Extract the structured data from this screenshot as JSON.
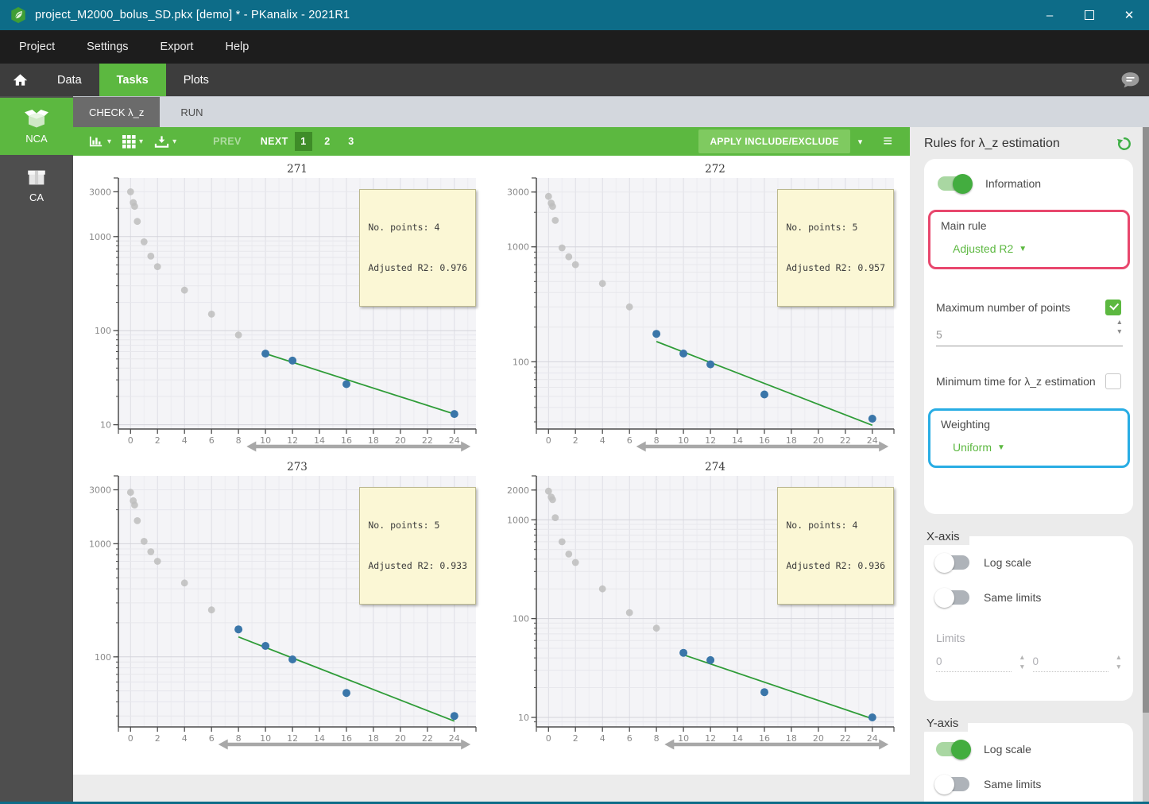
{
  "window": {
    "title": "project_M2000_bolus_SD.pkx [demo] * - PKanalix - 2021R1",
    "controls": {
      "minimize": "–",
      "close": "✕"
    }
  },
  "menu": {
    "items": [
      {
        "label": "Project"
      },
      {
        "label": "Settings"
      },
      {
        "label": "Export"
      },
      {
        "label": "Help"
      }
    ]
  },
  "nav": {
    "tabs": [
      {
        "label": "Data",
        "active": false
      },
      {
        "label": "Tasks",
        "active": true
      },
      {
        "label": "Plots",
        "active": false
      }
    ]
  },
  "sidebar": {
    "items": [
      {
        "label": "NCA",
        "active": true
      },
      {
        "label": "CA",
        "active": false
      }
    ]
  },
  "task_tabs": [
    {
      "label": "CHECK λ_z",
      "active": true
    },
    {
      "label": "RUN",
      "active": false
    }
  ],
  "toolbar": {
    "prev_label": "PREV",
    "next_label": "NEXT",
    "pages": [
      {
        "label": "1",
        "active": true
      },
      {
        "label": "2",
        "active": false
      },
      {
        "label": "3",
        "active": false
      }
    ],
    "apply_label": "APPLY INCLUDE/EXCLUDE"
  },
  "panel": {
    "title": "Rules for λ_z estimation",
    "information": {
      "label": "Information",
      "on": true
    },
    "main_rule": {
      "label": "Main rule",
      "value": "Adjusted R2"
    },
    "max_points": {
      "label": "Maximum number of points",
      "checked": true,
      "value": "5"
    },
    "min_time": {
      "label": "Minimum time for λ_z estimation",
      "checked": false
    },
    "weighting": {
      "label": "Weighting",
      "value": "Uniform"
    },
    "x_axis": {
      "title": "X-axis",
      "log_scale": {
        "label": "Log scale",
        "on": false
      },
      "same_limits": {
        "label": "Same limits",
        "on": false
      },
      "limits_label": "Limits",
      "limit_min": "0",
      "limit_max": "0"
    },
    "y_axis": {
      "title": "Y-axis",
      "log_scale": {
        "label": "Log scale",
        "on": true
      },
      "same_limits": {
        "label": "Same limits",
        "on": false
      }
    }
  },
  "chart_data": [
    {
      "type": "scatter",
      "title": "271",
      "log_y": true,
      "xlim": [
        -0.9,
        25.6
      ],
      "ylim": [
        9,
        3600
      ],
      "x_ticks": [
        0,
        2,
        4,
        6,
        8,
        10,
        12,
        14,
        16,
        18,
        20,
        22,
        24
      ],
      "y_tick_labels": [
        3000,
        1000,
        100,
        10
      ],
      "excluded_points": [
        [
          0,
          3000
        ],
        [
          0.2,
          2300
        ],
        [
          0.3,
          2100
        ],
        [
          0.5,
          1450
        ],
        [
          1,
          880
        ],
        [
          1.5,
          620
        ],
        [
          2,
          480
        ],
        [
          4,
          270
        ],
        [
          6,
          150
        ],
        [
          8,
          90
        ]
      ],
      "included_points": [
        [
          10,
          57
        ],
        [
          12,
          48
        ],
        [
          16,
          27
        ],
        [
          24,
          13
        ]
      ],
      "fit_line": [
        [
          10,
          57
        ],
        [
          24,
          13
        ]
      ],
      "arrow_range": [
        8.6,
        25.2
      ],
      "tooltip": {
        "line1": "No. points: 4",
        "line2": "Adjusted R2: 0.976"
      }
    },
    {
      "type": "scatter",
      "title": "272",
      "log_y": true,
      "xlim": [
        -0.9,
        25.6
      ],
      "ylim": [
        26,
        3500
      ],
      "x_ticks": [
        0,
        2,
        4,
        6,
        8,
        10,
        12,
        14,
        16,
        18,
        20,
        22,
        24
      ],
      "y_tick_labels": [
        3000,
        1000,
        100
      ],
      "excluded_points": [
        [
          0,
          2750
        ],
        [
          0.2,
          2400
        ],
        [
          0.3,
          2250
        ],
        [
          0.5,
          1700
        ],
        [
          1,
          980
        ],
        [
          1.5,
          820
        ],
        [
          2,
          700
        ],
        [
          4,
          480
        ],
        [
          6,
          300
        ]
      ],
      "included_points": [
        [
          8,
          175
        ],
        [
          10,
          118
        ],
        [
          12,
          95
        ],
        [
          16,
          52
        ],
        [
          24,
          32
        ]
      ],
      "fit_line": [
        [
          8,
          150
        ],
        [
          24,
          28
        ]
      ],
      "arrow_range": [
        6.5,
        25.2
      ],
      "tooltip": {
        "line1": "No. points: 5",
        "line2": "Adjusted R2: 0.957"
      }
    },
    {
      "type": "scatter",
      "title": "273",
      "log_y": true,
      "xlim": [
        -0.9,
        25.6
      ],
      "ylim": [
        24,
        3500
      ],
      "x_ticks": [
        0,
        2,
        4,
        6,
        8,
        10,
        12,
        14,
        16,
        18,
        20,
        22,
        24
      ],
      "y_tick_labels": [
        3000,
        1000,
        100
      ],
      "excluded_points": [
        [
          0,
          2850
        ],
        [
          0.2,
          2400
        ],
        [
          0.3,
          2200
        ],
        [
          0.5,
          1600
        ],
        [
          1,
          1050
        ],
        [
          1.5,
          850
        ],
        [
          2,
          700
        ],
        [
          4,
          450
        ],
        [
          6,
          260
        ]
      ],
      "included_points": [
        [
          8,
          175
        ],
        [
          10,
          125
        ],
        [
          12,
          95
        ],
        [
          16,
          48
        ],
        [
          24,
          30
        ]
      ],
      "fit_line": [
        [
          8,
          150
        ],
        [
          24,
          27
        ]
      ],
      "arrow_range": [
        6.5,
        25.2
      ],
      "tooltip": {
        "line1": "No. points: 5",
        "line2": "Adjusted R2: 0.933"
      }
    },
    {
      "type": "scatter",
      "title": "274",
      "log_y": true,
      "xlim": [
        -0.9,
        25.6
      ],
      "ylim": [
        8,
        2400
      ],
      "x_ticks": [
        0,
        2,
        4,
        6,
        8,
        10,
        12,
        14,
        16,
        18,
        20,
        22,
        24
      ],
      "y_tick_labels": [
        2000,
        1000,
        100,
        10
      ],
      "excluded_points": [
        [
          0,
          1950
        ],
        [
          0.2,
          1700
        ],
        [
          0.3,
          1600
        ],
        [
          0.5,
          1050
        ],
        [
          1,
          600
        ],
        [
          1.5,
          450
        ],
        [
          2,
          370
        ],
        [
          4,
          200
        ],
        [
          6,
          115
        ],
        [
          8,
          80
        ]
      ],
      "included_points": [
        [
          10,
          45
        ],
        [
          12,
          38
        ],
        [
          16,
          18
        ],
        [
          24,
          10
        ]
      ],
      "fit_line": [
        [
          10,
          43
        ],
        [
          24,
          9.7
        ]
      ],
      "arrow_range": [
        8.6,
        25.2
      ],
      "tooltip": {
        "line1": "No. points: 4",
        "line2": "Adjusted R2: 0.936"
      }
    }
  ],
  "colors": {
    "titlebar_teal": "#0d6c88",
    "accent_green": "#5cb840",
    "page_active_green": "#3e8c28",
    "apply_button_green": "#7fca60",
    "highlight_pink": "#e8476d",
    "highlight_blue": "#28ade4",
    "included_blue": "#3a76a9",
    "excluded_gray": "#bdbdbd",
    "fit_line_green": "#2f9c38",
    "tooltip_bg": "#fbf7d5"
  }
}
